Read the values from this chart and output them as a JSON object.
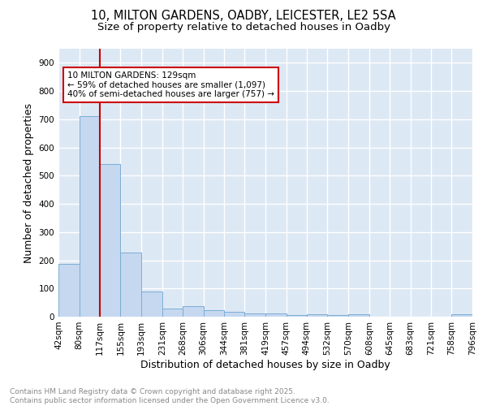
{
  "title_line1": "10, MILTON GARDENS, OADBY, LEICESTER, LE2 5SA",
  "title_line2": "Size of property relative to detached houses in Oadby",
  "xlabel": "Distribution of detached houses by size in Oadby",
  "ylabel": "Number of detached properties",
  "bar_color": "#c5d8f0",
  "bar_edge_color": "#7badd4",
  "bg_color": "#dde8f5",
  "grid_color": "#ffffff",
  "vline_color": "#cc0000",
  "vline_x": 117,
  "annotation_text": "10 MILTON GARDENS: 129sqm\n← 59% of detached houses are smaller (1,097)\n40% of semi-detached houses are larger (757) →",
  "annotation_box_color": "#ffffff",
  "annotation_box_edge": "#cc0000",
  "bin_edges": [
    42,
    80,
    117,
    155,
    193,
    231,
    268,
    306,
    344,
    381,
    419,
    457,
    494,
    532,
    570,
    608,
    645,
    683,
    721,
    758,
    796
  ],
  "bin_counts": [
    188,
    711,
    542,
    226,
    89,
    29,
    38,
    24,
    16,
    12,
    11,
    5,
    9,
    5,
    9,
    1,
    1,
    1,
    0,
    10
  ],
  "ylim": [
    0,
    950
  ],
  "yticks": [
    0,
    100,
    200,
    300,
    400,
    500,
    600,
    700,
    800,
    900
  ],
  "footer_text": "Contains HM Land Registry data © Crown copyright and database right 2025.\nContains public sector information licensed under the Open Government Licence v3.0.",
  "footer_color": "#888888",
  "title_fontsize": 10.5,
  "subtitle_fontsize": 9.5,
  "axis_label_fontsize": 9,
  "tick_label_fontsize": 7.5,
  "footer_fontsize": 6.5
}
